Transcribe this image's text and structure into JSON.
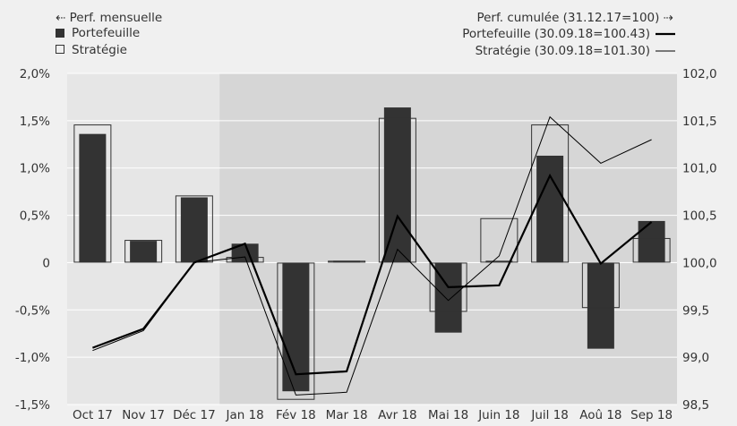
{
  "legend": {
    "left_header": "⇠ Perf. mensuelle",
    "left_items": [
      "Portefeuille",
      "Stratégie"
    ],
    "right_header": "Perf. cumulée (31.12.17=100) ⇢",
    "right_items": [
      "Portefeuille (30.09.18=100.43)",
      "Stratégie (30.09.18=101.30)"
    ]
  },
  "colors": {
    "background": "#f0f0f0",
    "plot_background": "#e6e6e6",
    "shaded_period": "#d6d6d6",
    "bar_portfolio": "#333333",
    "bar_strategy_outline": "#333333",
    "line_portfolio": "#000000",
    "line_strategy": "#000000",
    "text": "#333333"
  },
  "chart_data": {
    "type": "bar",
    "categories": [
      "Oct 17",
      "Nov 17",
      "Déc 17",
      "Jan 18",
      "Fév 18",
      "Mar 18",
      "Avr 18",
      "Mai 18",
      "Juin 18",
      "Juil 18",
      "Aoû 18",
      "Sep 18"
    ],
    "left_axis": {
      "ylim": [
        -1.5,
        2.0
      ],
      "ticks": [
        -1.5,
        -1.0,
        -0.5,
        0,
        0.5,
        1.0,
        1.5,
        2.0
      ],
      "tick_labels": [
        "-1,5%",
        "-1,0%",
        "-0,5%",
        "0",
        "0,5%",
        "1,0%",
        "1,5%",
        "2,0%"
      ]
    },
    "right_axis": {
      "ylim": [
        98.5,
        102.0
      ],
      "ticks": [
        98.5,
        99.0,
        99.5,
        100.0,
        100.5,
        101.0,
        101.5,
        102.0
      ],
      "tick_labels": [
        "98,5",
        "99,0",
        "99,5",
        "100,0",
        "100,5",
        "101,0",
        "101,5",
        "102,0"
      ]
    },
    "shaded_from_category": "Jan 18",
    "bar_series": [
      {
        "name": "Portefeuille",
        "style": "filled",
        "values": [
          1.36,
          0.23,
          0.69,
          0.2,
          -1.36,
          0.02,
          1.64,
          -0.74,
          0.02,
          1.13,
          -0.91,
          0.44
        ]
      },
      {
        "name": "Stratégie",
        "style": "outline",
        "values": [
          1.46,
          0.24,
          0.71,
          0.06,
          -1.45,
          0.02,
          1.53,
          -0.52,
          0.47,
          1.46,
          -0.48,
          0.26
        ]
      }
    ],
    "line_series": [
      {
        "name": "Portefeuille",
        "axis": "right",
        "width": 2.2,
        "values": [
          99.1,
          99.3,
          100.0,
          100.2,
          98.82,
          98.85,
          100.49,
          99.74,
          99.76,
          100.92,
          99.99,
          100.43
        ]
      },
      {
        "name": "Stratégie",
        "axis": "right",
        "width": 1,
        "values": [
          99.07,
          99.28,
          100.0,
          100.06,
          98.6,
          98.63,
          100.14,
          99.6,
          100.07,
          101.54,
          101.05,
          101.3
        ]
      }
    ]
  }
}
